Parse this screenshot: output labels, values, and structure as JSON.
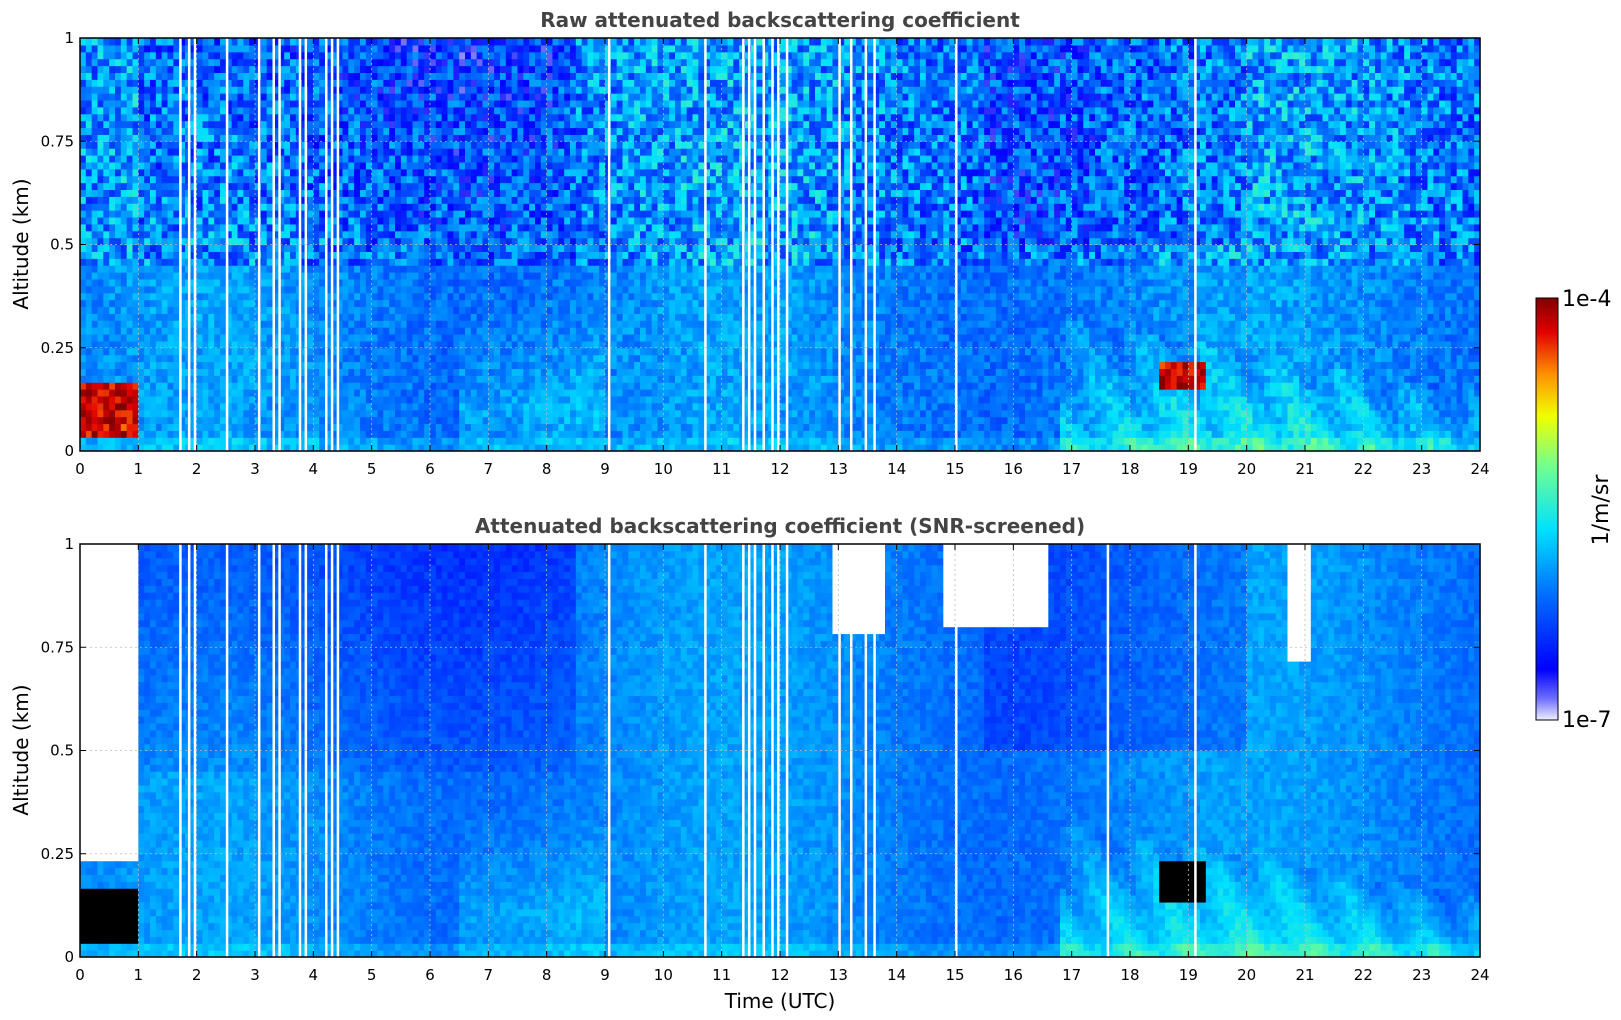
{
  "figure": {
    "colorbar": {
      "max_label": "1e-4",
      "min_label": "1e-7",
      "unit_label": "1/m/sr",
      "scale": "log",
      "range": [
        1e-07,
        0.0001
      ],
      "colormap": "jet"
    },
    "xlabel": "Time (UTC)"
  },
  "chart_data": [
    {
      "type": "heatmap",
      "title": "Raw attenuated backscattering coefficient",
      "xlabel": "",
      "ylabel": "Altitude (km)",
      "xlim": [
        0,
        24
      ],
      "ylim": [
        0,
        1
      ],
      "x_ticks": [
        "0",
        "1",
        "2",
        "3",
        "4",
        "5",
        "6",
        "7",
        "8",
        "9",
        "10",
        "11",
        "12",
        "13",
        "14",
        "15",
        "16",
        "17",
        "18",
        "19",
        "20",
        "21",
        "22",
        "23",
        "24"
      ],
      "y_ticks": [
        "0",
        "0.25",
        "0.5",
        "0.75",
        "1"
      ],
      "grid": true,
      "features": [
        {
          "name": "low-level aerosol layer",
          "t_start": 0.0,
          "t_end": 0.95,
          "alt_bottom": 0.03,
          "alt_top": 0.17,
          "level": "high"
        },
        {
          "name": "nighttime boundary layer",
          "t_start": 17.0,
          "t_end": 24.0,
          "alt_bottom": 0.0,
          "alt_top": 0.3,
          "level": "medium"
        },
        {
          "name": "aerosol plume",
          "t_start": 18.5,
          "t_end": 19.3,
          "alt_bottom": 0.15,
          "alt_top": 0.21,
          "level": "high"
        }
      ],
      "gaps_utc": [
        1.7,
        1.85,
        1.95,
        2.5,
        3.05,
        3.3,
        3.4,
        3.75,
        3.85,
        4.2,
        4.3,
        4.4,
        9.05,
        10.7,
        11.35,
        11.45,
        11.55,
        11.7,
        11.85,
        11.95,
        12.1,
        13.0,
        13.2,
        13.45,
        13.6,
        15.0,
        19.1
      ]
    },
    {
      "type": "heatmap",
      "title": "Attenuated backscattering coefficient (SNR-screened)",
      "xlabel": "Time (UTC)",
      "ylabel": "Altitude (km)",
      "xlim": [
        0,
        24
      ],
      "ylim": [
        0,
        1
      ],
      "x_ticks": [
        "0",
        "1",
        "2",
        "3",
        "4",
        "5",
        "6",
        "7",
        "8",
        "9",
        "10",
        "11",
        "12",
        "13",
        "14",
        "15",
        "16",
        "17",
        "18",
        "19",
        "20",
        "21",
        "22",
        "23",
        "24"
      ],
      "y_ticks": [
        "0",
        "0.25",
        "0.5",
        "0.75",
        "1"
      ],
      "grid": true,
      "features": [
        {
          "name": "low-level aerosol layer",
          "t_start": 0.0,
          "t_end": 0.95,
          "alt_bottom": 0.03,
          "alt_top": 0.17,
          "level": "saturated"
        },
        {
          "name": "nighttime boundary layer",
          "t_start": 17.0,
          "t_end": 24.0,
          "alt_bottom": 0.0,
          "alt_top": 0.3,
          "level": "medium"
        },
        {
          "name": "aerosol plume",
          "t_start": 18.5,
          "t_end": 19.3,
          "alt_bottom": 0.13,
          "alt_top": 0.23,
          "level": "saturated"
        }
      ],
      "screened_regions": [
        {
          "t_start": 0.0,
          "t_end": 0.95,
          "alt_bottom": 0.23,
          "alt_top": 1.0
        },
        {
          "t_start": 12.9,
          "t_end": 13.8,
          "alt_bottom": 0.78,
          "alt_top": 1.0
        },
        {
          "t_start": 14.8,
          "t_end": 16.6,
          "alt_bottom": 0.8,
          "alt_top": 1.0
        },
        {
          "t_start": 20.7,
          "t_end": 21.1,
          "alt_bottom": 0.72,
          "alt_top": 1.0
        }
      ],
      "gaps_utc": [
        1.7,
        1.85,
        1.95,
        2.5,
        3.05,
        3.3,
        3.4,
        3.75,
        3.85,
        4.2,
        4.3,
        4.4,
        9.05,
        10.7,
        11.35,
        11.45,
        11.55,
        11.7,
        11.85,
        11.95,
        12.1,
        13.0,
        13.2,
        13.45,
        13.6,
        15.0,
        17.6,
        19.1
      ]
    }
  ]
}
